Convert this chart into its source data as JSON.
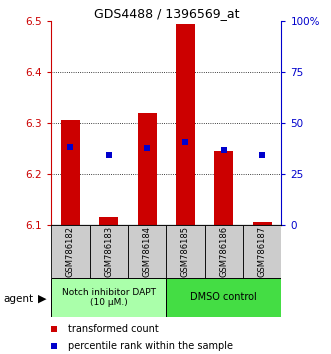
{
  "title": "GDS4488 / 1396569_at",
  "samples": [
    "GSM786182",
    "GSM786183",
    "GSM786184",
    "GSM786185",
    "GSM786186",
    "GSM786187"
  ],
  "bar_tops": [
    6.305,
    6.115,
    6.32,
    6.495,
    6.245,
    6.105
  ],
  "bar_base": 6.1,
  "blue_values": [
    6.252,
    6.238,
    6.25,
    6.263,
    6.247,
    6.238
  ],
  "ylim": [
    6.1,
    6.5
  ],
  "yticks_left": [
    6.1,
    6.2,
    6.3,
    6.4,
    6.5
  ],
  "yticks_right_pct": [
    0,
    25,
    50,
    75,
    100
  ],
  "bar_color": "#cc0000",
  "blue_color": "#0000cc",
  "group1_label": "Notch inhibitor DAPT\n(10 μM.)",
  "group2_label": "DMSO control",
  "group1_bg": "#aaffaa",
  "group2_bg": "#44dd44",
  "sample_box_bg": "#cccccc",
  "legend_red_label": "transformed count",
  "legend_blue_label": "percentile rank within the sample",
  "agent_label": "agent",
  "bar_width": 0.5
}
